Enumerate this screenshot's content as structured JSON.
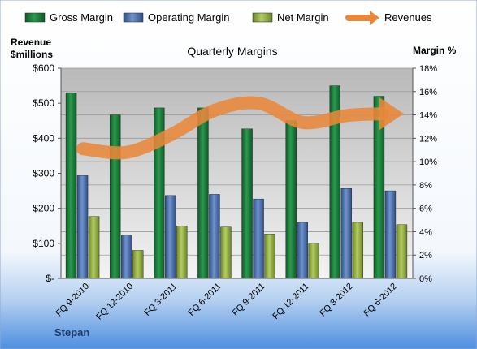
{
  "chart_data": {
    "type": "bar",
    "title": "Quarterly Margins",
    "company": "Stepan",
    "left_axis_title_line1": "Revenue",
    "left_axis_title_line2": "$millions",
    "right_axis_title": "Margin %",
    "left_axis": {
      "min": 0,
      "max": 600,
      "ticks": [
        "$-",
        "$100",
        "$200",
        "$300",
        "$400",
        "$500",
        "$600"
      ]
    },
    "right_axis": {
      "min": 0,
      "max": 18,
      "ticks": [
        "0%",
        "2%",
        "4%",
        "6%",
        "8%",
        "10%",
        "12%",
        "14%",
        "16%",
        "18%"
      ]
    },
    "categories": [
      "FQ 9-2010",
      "FQ 12-2010",
      "FQ 3-2011",
      "FQ 6-2011",
      "FQ 9-2011",
      "FQ 12-2011",
      "FQ 3-2012",
      "FQ 6-2012"
    ],
    "series": [
      {
        "name": "Gross Margin",
        "axis": "right",
        "color": "#1e7a3c",
        "values": [
          15.9,
          14.0,
          14.6,
          14.6,
          12.8,
          13.5,
          16.5,
          15.6
        ]
      },
      {
        "name": "Operating Margin",
        "axis": "right",
        "color": "#4a6ea8",
        "values": [
          8.8,
          3.7,
          7.1,
          7.2,
          6.8,
          4.8,
          7.7,
          7.5
        ]
      },
      {
        "name": "Net Margin",
        "axis": "right",
        "color": "#8faa3c",
        "values": [
          5.3,
          2.4,
          4.5,
          4.4,
          3.8,
          3.0,
          4.8,
          4.6
        ]
      },
      {
        "name": "Revenues",
        "axis": "left",
        "type": "line",
        "color": "#e8873a",
        "values": [
          370,
          360,
          410,
          480,
          500,
          445,
          465,
          470
        ]
      }
    ],
    "grid": true,
    "legend_position": "top"
  }
}
